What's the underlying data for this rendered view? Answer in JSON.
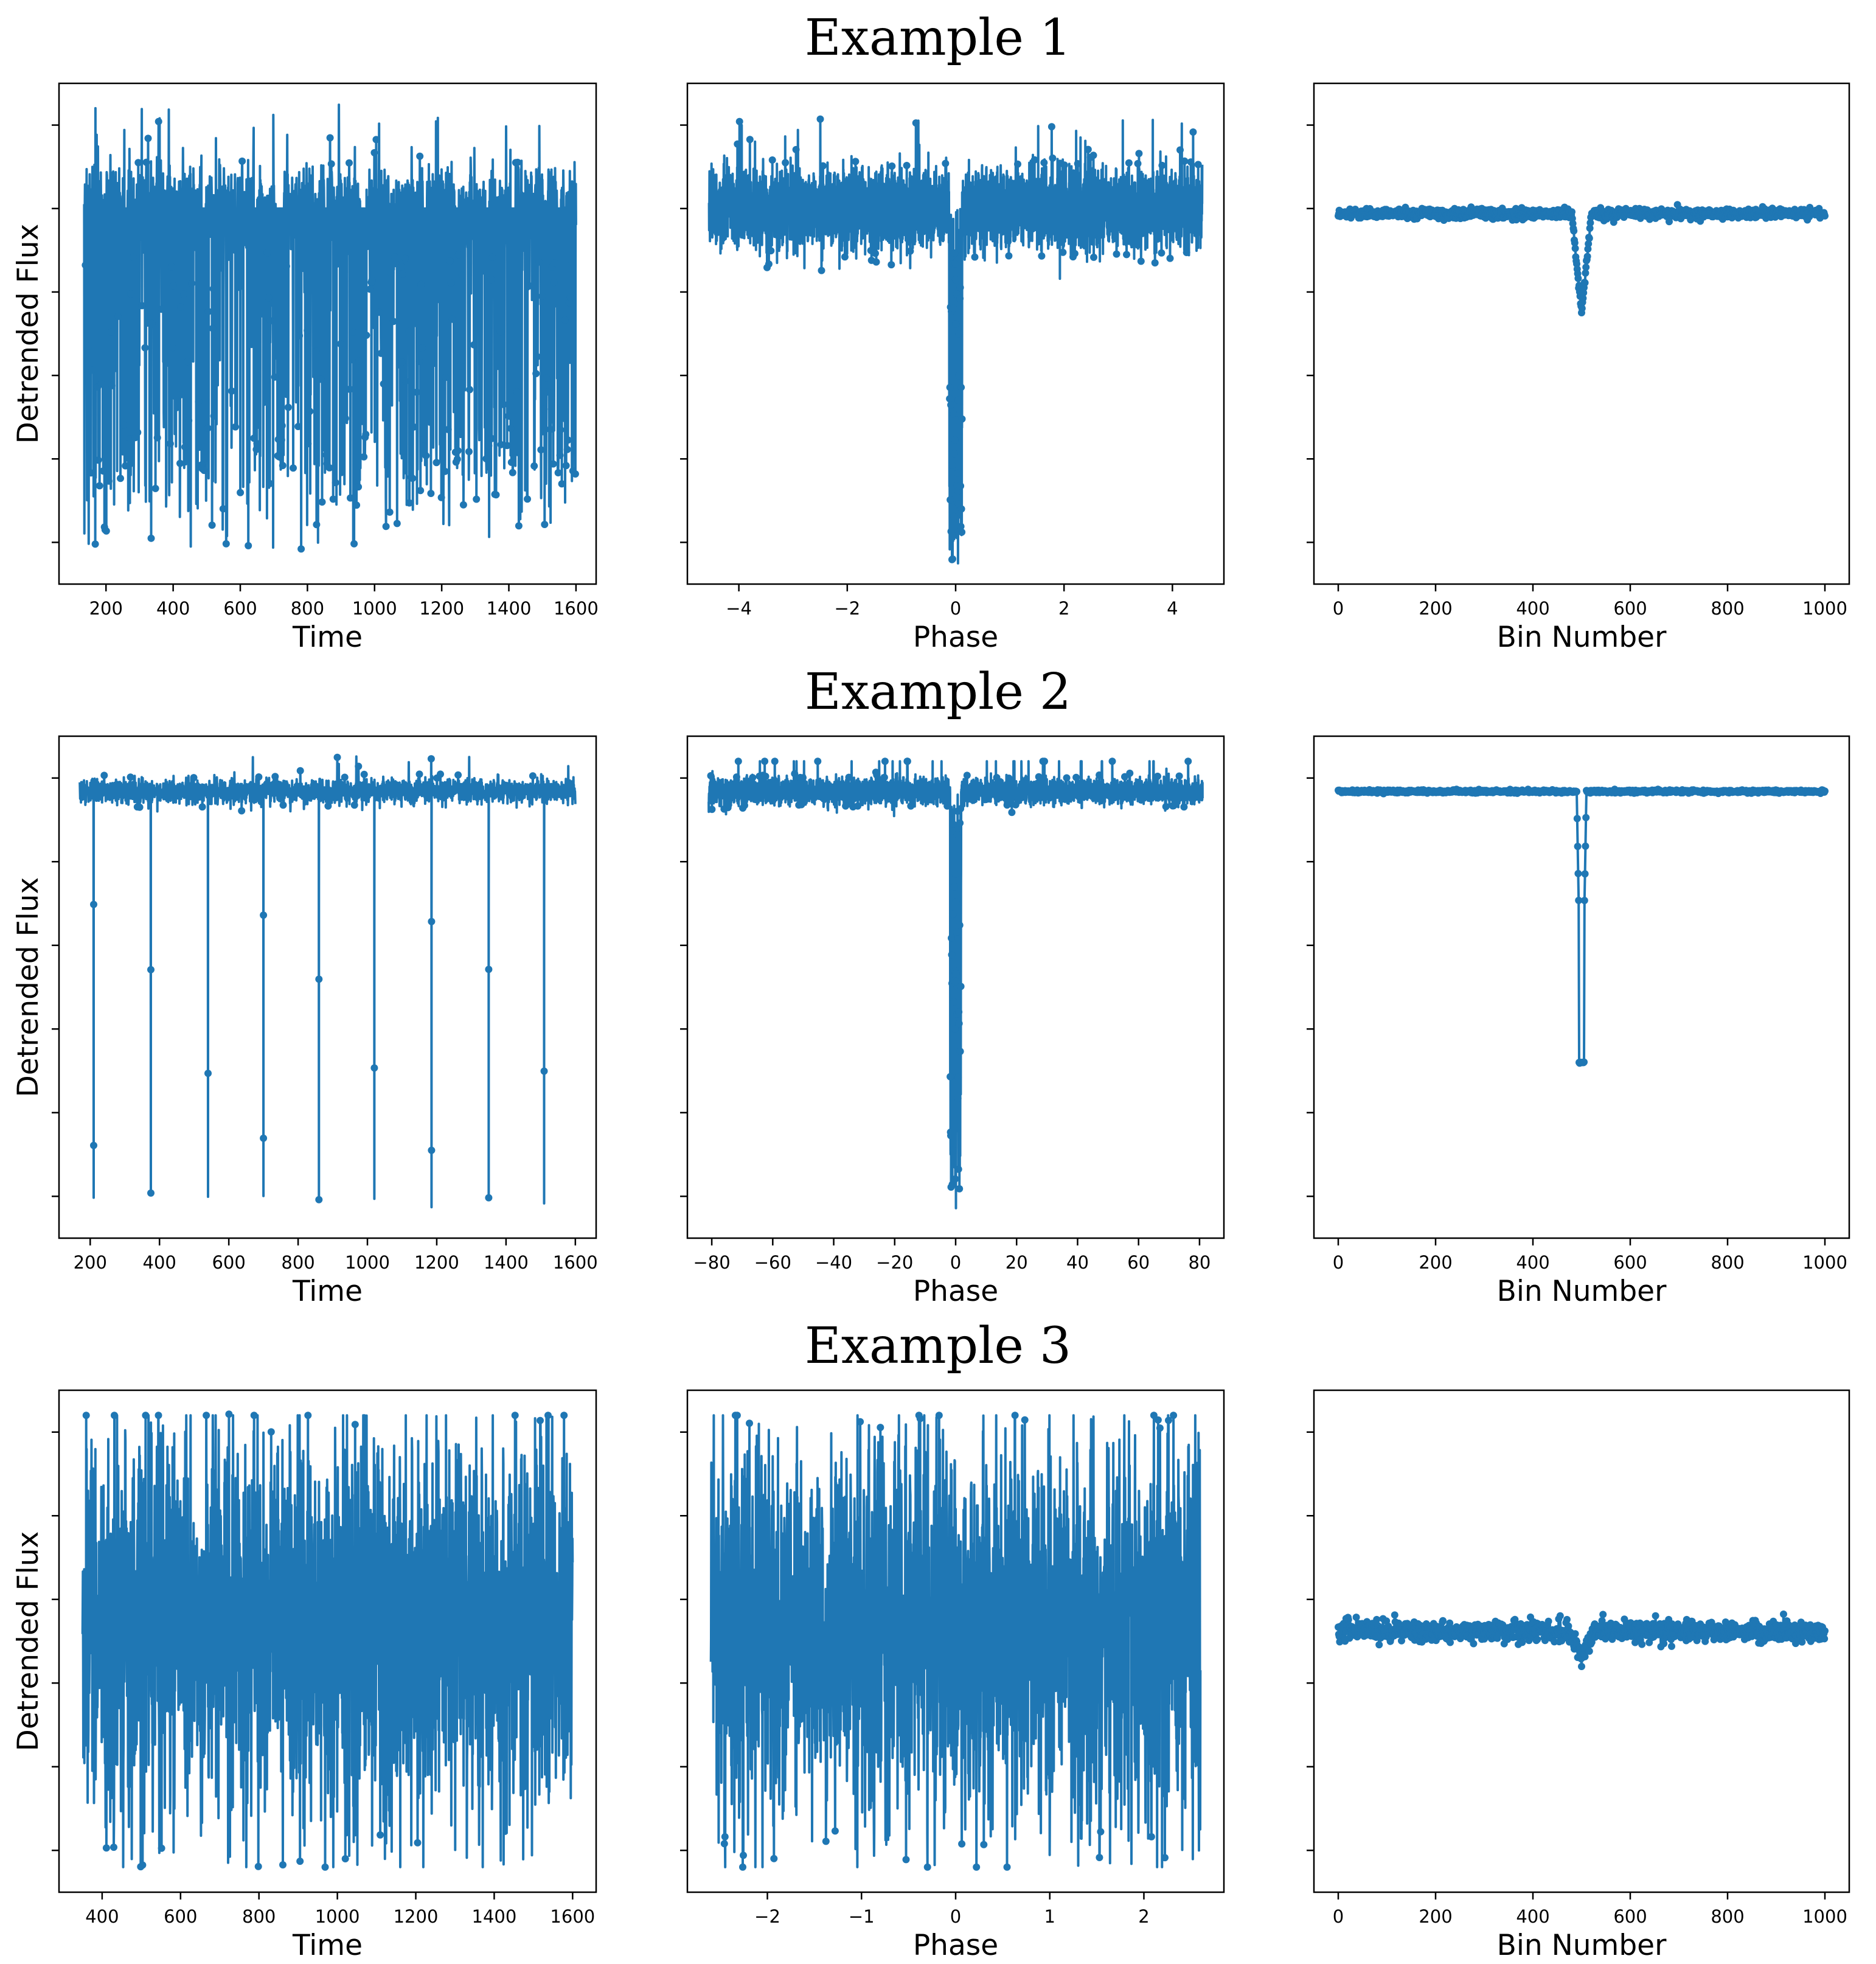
{
  "style": {
    "series_color": "#1f77b4",
    "axis_color": "#000000",
    "background": "#ffffff"
  },
  "rows": [
    {
      "title": "Example 1"
    },
    {
      "title": "Example 2"
    },
    {
      "title": "Example 3"
    }
  ],
  "chart_data": [
    {
      "row": 1,
      "col": 1,
      "type": "line",
      "xlabel": "Time",
      "ylabel": "Detrended Flux",
      "xticks": [
        200,
        400,
        600,
        800,
        1000,
        1200,
        1400,
        1600
      ],
      "xlim": [
        60,
        1660
      ],
      "n_yticks": 6,
      "ylim": [
        0,
        100
      ],
      "pattern": {
        "kind": "timeseries_gaps",
        "x_start": 135,
        "x_end": 1600,
        "baseline": 75,
        "noise": 4.0,
        "upper_spike": 96,
        "lower_floor": 7,
        "gaps": [
          [
            255,
            265
          ],
          [
            485,
            495
          ],
          [
            640,
            650
          ],
          [
            710,
            730
          ],
          [
            850,
            860
          ],
          [
            960,
            975
          ],
          [
            1145,
            1155
          ],
          [
            1240,
            1250
          ],
          [
            1330,
            1340
          ],
          [
            1405,
            1420
          ],
          [
            1545,
            1555
          ]
        ]
      }
    },
    {
      "row": 1,
      "col": 2,
      "type": "line",
      "xlabel": "Phase",
      "ylabel": "",
      "xticks": [
        -4,
        -2,
        0,
        2,
        4
      ],
      "xtick_labels": [
        "−4",
        "−2",
        "0",
        "2",
        "4"
      ],
      "xlim": [
        -4.95,
        4.95
      ],
      "n_yticks": 6,
      "ylim": [
        0,
        100
      ],
      "pattern": {
        "kind": "phase_fold",
        "x_start": -4.55,
        "x_end": 4.55,
        "baseline": 75,
        "noise": 3.8,
        "dip_center": 0.0,
        "dip_width": 0.12,
        "dip_depth": 4,
        "upper_spike": 93
      }
    },
    {
      "row": 1,
      "col": 3,
      "type": "line",
      "xlabel": "Bin Number",
      "ylabel": "",
      "xticks": [
        0,
        200,
        400,
        600,
        800,
        1000
      ],
      "xlim": [
        -50,
        1050
      ],
      "n_yticks": 6,
      "ylim": [
        0,
        100
      ],
      "pattern": {
        "kind": "binned",
        "x_start": 0,
        "x_end": 1000,
        "baseline": 74,
        "noise": 0.5,
        "dip_center": 500,
        "dip_width": 20,
        "dip_depth": 20
      }
    },
    {
      "row": 2,
      "col": 1,
      "type": "line",
      "xlabel": "Time",
      "ylabel": "Detrended Flux",
      "xticks": [
        200,
        400,
        600,
        800,
        1000,
        1200,
        1400,
        1600
      ],
      "xlim": [
        110,
        1660
      ],
      "n_yticks": 6,
      "ylim": [
        0,
        100
      ],
      "pattern": {
        "kind": "periodic_transits",
        "x_start": 170,
        "x_end": 1600,
        "baseline": 89,
        "noise": 1.2,
        "upper_spike": 96,
        "transits": [
          210,
          375,
          540,
          700,
          860,
          1020,
          1185,
          1350,
          1510
        ],
        "dip_floor": 6
      }
    },
    {
      "row": 2,
      "col": 2,
      "type": "line",
      "xlabel": "Phase",
      "ylabel": "",
      "xticks": [
        -80,
        -60,
        -40,
        -20,
        0,
        20,
        40,
        60,
        80
      ],
      "xtick_labels": [
        "−80",
        "−60",
        "−40",
        "−20",
        "0",
        "20",
        "40",
        "60",
        "80"
      ],
      "xlim": [
        -88,
        88
      ],
      "n_yticks": 6,
      "ylim": [
        0,
        100
      ],
      "pattern": {
        "kind": "phase_fold",
        "x_start": -81,
        "x_end": 81,
        "baseline": 89,
        "noise": 1.2,
        "dip_center": 0.0,
        "dip_width": 1.8,
        "dip_depth": 5,
        "upper_spike": 95
      }
    },
    {
      "row": 2,
      "col": 3,
      "type": "line",
      "xlabel": "Bin Number",
      "ylabel": "",
      "xticks": [
        0,
        200,
        400,
        600,
        800,
        1000
      ],
      "xlim": [
        -50,
        1050
      ],
      "n_yticks": 6,
      "ylim": [
        0,
        100
      ],
      "pattern": {
        "kind": "binned",
        "x_start": 0,
        "x_end": 1000,
        "baseline": 89,
        "noise": 0.15,
        "dip_center": 500,
        "dip_width": 10,
        "dip_depth": 54
      }
    },
    {
      "row": 3,
      "col": 1,
      "type": "line",
      "xlabel": "Time",
      "ylabel": "Detrended Flux",
      "xticks": [
        400,
        600,
        800,
        1000,
        1200,
        1400,
        1600
      ],
      "xlim": [
        290,
        1660
      ],
      "n_yticks": 6,
      "ylim": [
        0,
        100
      ],
      "pattern": {
        "kind": "noise_band",
        "x_start": 350,
        "x_end": 1600,
        "baseline": 52,
        "noise": 18,
        "upper_spike": 95,
        "lower_floor": 5,
        "gaps": [
          [
            720,
            730
          ],
          [
            1470,
            1480
          ]
        ]
      }
    },
    {
      "row": 3,
      "col": 2,
      "type": "line",
      "xlabel": "Phase",
      "ylabel": "",
      "xticks": [
        -2,
        -1,
        0,
        1,
        2
      ],
      "xtick_labels": [
        "−2",
        "−1",
        "0",
        "1",
        "2"
      ],
      "xlim": [
        -2.85,
        2.85
      ],
      "n_yticks": 6,
      "ylim": [
        0,
        100
      ],
      "pattern": {
        "kind": "noise_band",
        "x_start": -2.6,
        "x_end": 2.6,
        "baseline": 52,
        "noise": 18,
        "upper_spike": 95,
        "lower_floor": 5,
        "gaps": []
      }
    },
    {
      "row": 3,
      "col": 3,
      "type": "line",
      "xlabel": "Bin Number",
      "ylabel": "",
      "xticks": [
        0,
        200,
        400,
        600,
        800,
        1000
      ],
      "xlim": [
        -50,
        1050
      ],
      "n_yticks": 6,
      "ylim": [
        0,
        100
      ],
      "pattern": {
        "kind": "binned",
        "x_start": 0,
        "x_end": 1000,
        "baseline": 52,
        "noise": 1.0,
        "dip_center": 500,
        "dip_width": 25,
        "dip_depth": 5
      }
    }
  ]
}
